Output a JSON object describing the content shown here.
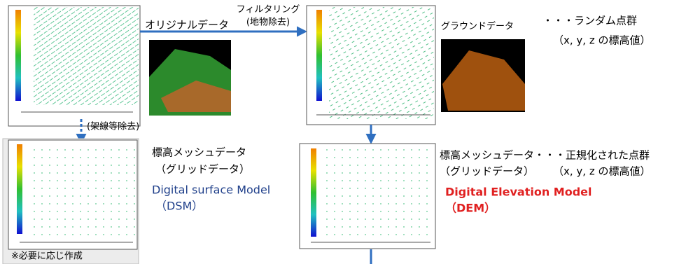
{
  "original": {
    "label": "オリジナルデータ"
  },
  "filter": {
    "line1": "フィルタリング",
    "line2": "(地物除去)"
  },
  "ground": {
    "label": "グラウンドデータ",
    "note1": "・・・ランダム点群",
    "note2": "（x, y, z の標高値）"
  },
  "wire_removal": "(架線等除去)",
  "dsm": {
    "line1": "標高メッシュデータ",
    "line2": "（グリッドデータ）",
    "line3": "Digital  surface Model",
    "line4": "（DSM）",
    "footnote": "※必要に応じ作成"
  },
  "dem": {
    "line1": "標高メッシュデータ・・・正規化された点群",
    "line2": "（グリッドデータ）",
    "line3": "（x, y, z の標高値）",
    "line4": "Digital  Elevation Model",
    "line5": "（DEM）"
  }
}
